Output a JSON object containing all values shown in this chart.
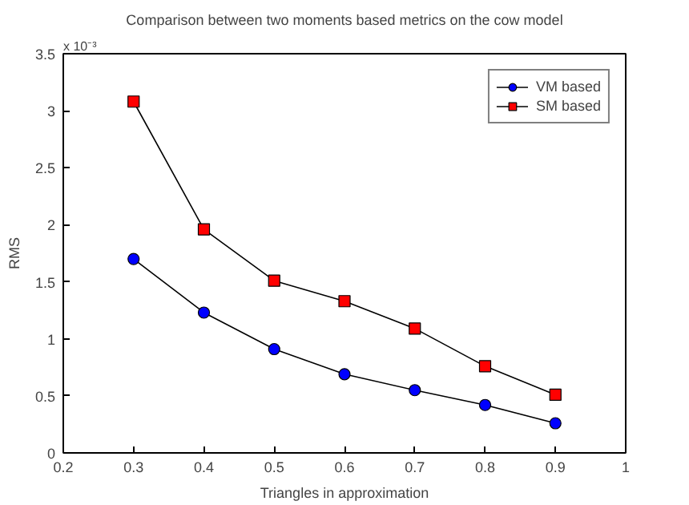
{
  "chart_data": {
    "type": "line",
    "title": "Comparison between two moments based metrics on the cow model",
    "xlabel": "Triangles in approximation",
    "ylabel": "RMS",
    "annotations": [
      "x 10⁻³"
    ],
    "x": [
      0.3,
      0.4,
      0.5,
      0.6,
      0.7,
      0.8,
      0.9
    ],
    "series": [
      {
        "name": "VM based",
        "color": "#0000ff",
        "marker": "circle",
        "values": [
          1.7,
          1.23,
          0.91,
          0.69,
          0.55,
          0.42,
          0.26
        ]
      },
      {
        "name": "SM based",
        "color": "#ff0000",
        "marker": "square",
        "values": [
          3.08,
          1.96,
          1.51,
          1.33,
          1.09,
          0.76,
          0.51
        ]
      }
    ],
    "xlim": [
      0.2,
      1
    ],
    "xticks": [
      0.2,
      0.3,
      0.4,
      0.5,
      0.6,
      0.7,
      0.8,
      0.9,
      1
    ],
    "ylim": [
      0,
      3.5
    ],
    "yticks": [
      0,
      0.5,
      1,
      1.5,
      2,
      2.5,
      3,
      3.5
    ],
    "grid": false,
    "legend": "top right",
    "line_style": "solid"
  }
}
